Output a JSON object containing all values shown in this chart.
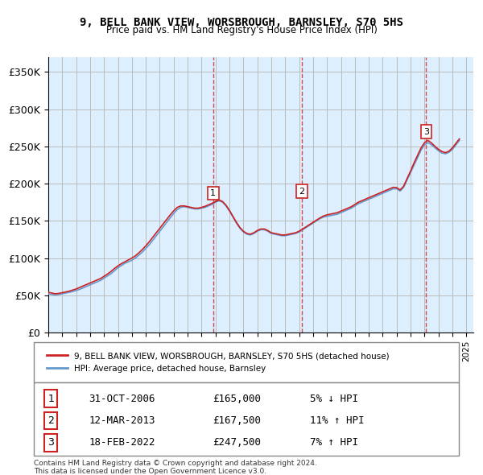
{
  "title": "9, BELL BANK VIEW, WORSBROUGH, BARNSLEY, S70 5HS",
  "subtitle": "Price paid vs. HM Land Registry's House Price Index (HPI)",
  "ylabel_ticks": [
    "£0",
    "£50K",
    "£100K",
    "£150K",
    "£200K",
    "£250K",
    "£300K",
    "£350K"
  ],
  "ytick_values": [
    0,
    50000,
    100000,
    150000,
    200000,
    250000,
    300000,
    350000
  ],
  "ylim": [
    0,
    370000
  ],
  "xlim_start": 1995.0,
  "xlim_end": 2025.5,
  "hpi_color": "#6699cc",
  "price_color": "#cc2222",
  "sale_color": "#cc2222",
  "vline_color": "#cc2222",
  "bg_color": "#ddeeff",
  "grid_color": "#bbbbbb",
  "legend_label_red": "9, BELL BANK VIEW, WORSBROUGH, BARNSLEY, S70 5HS (detached house)",
  "legend_label_blue": "HPI: Average price, detached house, Barnsley",
  "sales": [
    {
      "num": 1,
      "date_x": 2006.83,
      "price": 165000,
      "label": "31-OCT-2006",
      "price_str": "£165,000",
      "pct": "5%",
      "dir": "↓"
    },
    {
      "num": 2,
      "date_x": 2013.19,
      "price": 167500,
      "label": "12-MAR-2013",
      "price_str": "£167,500",
      "pct": "11%",
      "dir": "↑"
    },
    {
      "num": 3,
      "date_x": 2022.12,
      "price": 247500,
      "label": "18-FEB-2022",
      "price_str": "£247,500",
      "pct": "7%",
      "dir": "↑"
    }
  ],
  "footer": "Contains HM Land Registry data © Crown copyright and database right 2024.\nThis data is licensed under the Open Government Licence v3.0.",
  "hpi_data_x": [
    1995.0,
    1995.25,
    1995.5,
    1995.75,
    1996.0,
    1996.25,
    1996.5,
    1996.75,
    1997.0,
    1997.25,
    1997.5,
    1997.75,
    1998.0,
    1998.25,
    1998.5,
    1998.75,
    1999.0,
    1999.25,
    1999.5,
    1999.75,
    2000.0,
    2000.25,
    2000.5,
    2000.75,
    2001.0,
    2001.25,
    2001.5,
    2001.75,
    2002.0,
    2002.25,
    2002.5,
    2002.75,
    2003.0,
    2003.25,
    2003.5,
    2003.75,
    2004.0,
    2004.25,
    2004.5,
    2004.75,
    2005.0,
    2005.25,
    2005.5,
    2005.75,
    2006.0,
    2006.25,
    2006.5,
    2006.75,
    2007.0,
    2007.25,
    2007.5,
    2007.75,
    2008.0,
    2008.25,
    2008.5,
    2008.75,
    2009.0,
    2009.25,
    2009.5,
    2009.75,
    2010.0,
    2010.25,
    2010.5,
    2010.75,
    2011.0,
    2011.25,
    2011.5,
    2011.75,
    2012.0,
    2012.25,
    2012.5,
    2012.75,
    2013.0,
    2013.25,
    2013.5,
    2013.75,
    2014.0,
    2014.25,
    2014.5,
    2014.75,
    2015.0,
    2015.25,
    2015.5,
    2015.75,
    2016.0,
    2016.25,
    2016.5,
    2016.75,
    2017.0,
    2017.25,
    2017.5,
    2017.75,
    2018.0,
    2018.25,
    2018.5,
    2018.75,
    2019.0,
    2019.25,
    2019.5,
    2019.75,
    2020.0,
    2020.25,
    2020.5,
    2020.75,
    2021.0,
    2021.25,
    2021.5,
    2021.75,
    2022.0,
    2022.25,
    2022.5,
    2022.75,
    2023.0,
    2023.25,
    2023.5,
    2023.75,
    2024.0,
    2024.25,
    2024.5
  ],
  "hpi_data_y": [
    52000,
    51000,
    50500,
    51000,
    52000,
    53000,
    54000,
    55000,
    56500,
    58000,
    60000,
    62000,
    64000,
    66000,
    68000,
    70000,
    73000,
    76000,
    79000,
    83000,
    87000,
    90000,
    93000,
    95000,
    97000,
    100000,
    104000,
    108000,
    113000,
    118000,
    124000,
    130000,
    136000,
    142000,
    148000,
    154000,
    160000,
    165000,
    168000,
    169000,
    168000,
    167000,
    166000,
    166000,
    167000,
    168000,
    170000,
    172000,
    175000,
    177000,
    175000,
    170000,
    163000,
    155000,
    147000,
    140000,
    135000,
    132000,
    131000,
    133000,
    136000,
    138000,
    138000,
    136000,
    133000,
    132000,
    131000,
    130000,
    130000,
    131000,
    132000,
    133000,
    135000,
    138000,
    141000,
    144000,
    147000,
    150000,
    153000,
    155000,
    156000,
    157000,
    158000,
    159000,
    161000,
    163000,
    165000,
    167000,
    170000,
    173000,
    175000,
    177000,
    179000,
    181000,
    183000,
    185000,
    187000,
    189000,
    191000,
    193000,
    193000,
    190000,
    195000,
    205000,
    215000,
    225000,
    235000,
    245000,
    252000,
    255000,
    252000,
    248000,
    244000,
    241000,
    240000,
    242000,
    246000,
    252000,
    258000
  ],
  "price_data_x": [
    1995.0,
    1995.25,
    1995.5,
    1995.75,
    1996.0,
    1996.25,
    1996.5,
    1996.75,
    1997.0,
    1997.25,
    1997.5,
    1997.75,
    1998.0,
    1998.25,
    1998.5,
    1998.75,
    1999.0,
    1999.25,
    1999.5,
    1999.75,
    2000.0,
    2000.25,
    2000.5,
    2000.75,
    2001.0,
    2001.25,
    2001.5,
    2001.75,
    2002.0,
    2002.25,
    2002.5,
    2002.75,
    2003.0,
    2003.25,
    2003.5,
    2003.75,
    2004.0,
    2004.25,
    2004.5,
    2004.75,
    2005.0,
    2005.25,
    2005.5,
    2005.75,
    2006.0,
    2006.25,
    2006.5,
    2006.75,
    2007.0,
    2007.25,
    2007.5,
    2007.75,
    2008.0,
    2008.25,
    2008.5,
    2008.75,
    2009.0,
    2009.25,
    2009.5,
    2009.75,
    2010.0,
    2010.25,
    2010.5,
    2010.75,
    2011.0,
    2011.25,
    2011.5,
    2011.75,
    2012.0,
    2012.25,
    2012.5,
    2012.75,
    2013.0,
    2013.25,
    2013.5,
    2013.75,
    2014.0,
    2014.25,
    2014.5,
    2014.75,
    2015.0,
    2015.25,
    2015.5,
    2015.75,
    2016.0,
    2016.25,
    2016.5,
    2016.75,
    2017.0,
    2017.25,
    2017.5,
    2017.75,
    2018.0,
    2018.25,
    2018.5,
    2018.75,
    2019.0,
    2019.25,
    2019.5,
    2019.75,
    2020.0,
    2020.25,
    2020.5,
    2020.75,
    2021.0,
    2021.25,
    2021.5,
    2021.75,
    2022.0,
    2022.25,
    2022.5,
    2022.75,
    2023.0,
    2023.25,
    2023.5,
    2023.75,
    2024.0,
    2024.25,
    2024.5
  ],
  "price_data_y": [
    54000,
    53000,
    52000,
    52500,
    53500,
    54500,
    55500,
    57000,
    58500,
    60500,
    62500,
    64500,
    66500,
    68500,
    70500,
    72500,
    75500,
    78500,
    82000,
    86000,
    89500,
    92500,
    95000,
    97500,
    100000,
    103000,
    107000,
    111500,
    116500,
    122000,
    128000,
    134000,
    140000,
    146000,
    152000,
    158000,
    163500,
    168000,
    170000,
    170000,
    169000,
    168000,
    167000,
    167000,
    168000,
    169500,
    171500,
    173500,
    176000,
    178000,
    176000,
    171000,
    164000,
    156000,
    148000,
    141000,
    136000,
    133000,
    132000,
    134000,
    137000,
    139000,
    139000,
    137000,
    134000,
    133000,
    132000,
    131000,
    131000,
    132000,
    133000,
    134000,
    136000,
    139000,
    142000,
    145000,
    148000,
    151000,
    154000,
    156500,
    158000,
    159000,
    160000,
    161000,
    163000,
    165000,
    167000,
    169000,
    172000,
    175000,
    177000,
    179000,
    181000,
    183000,
    185000,
    187000,
    189000,
    191000,
    193000,
    195000,
    194500,
    191500,
    196500,
    207000,
    217000,
    228000,
    238000,
    248000,
    255000,
    258000,
    254500,
    250000,
    246000,
    243000,
    241500,
    243500,
    248000,
    254000,
    260000
  ]
}
